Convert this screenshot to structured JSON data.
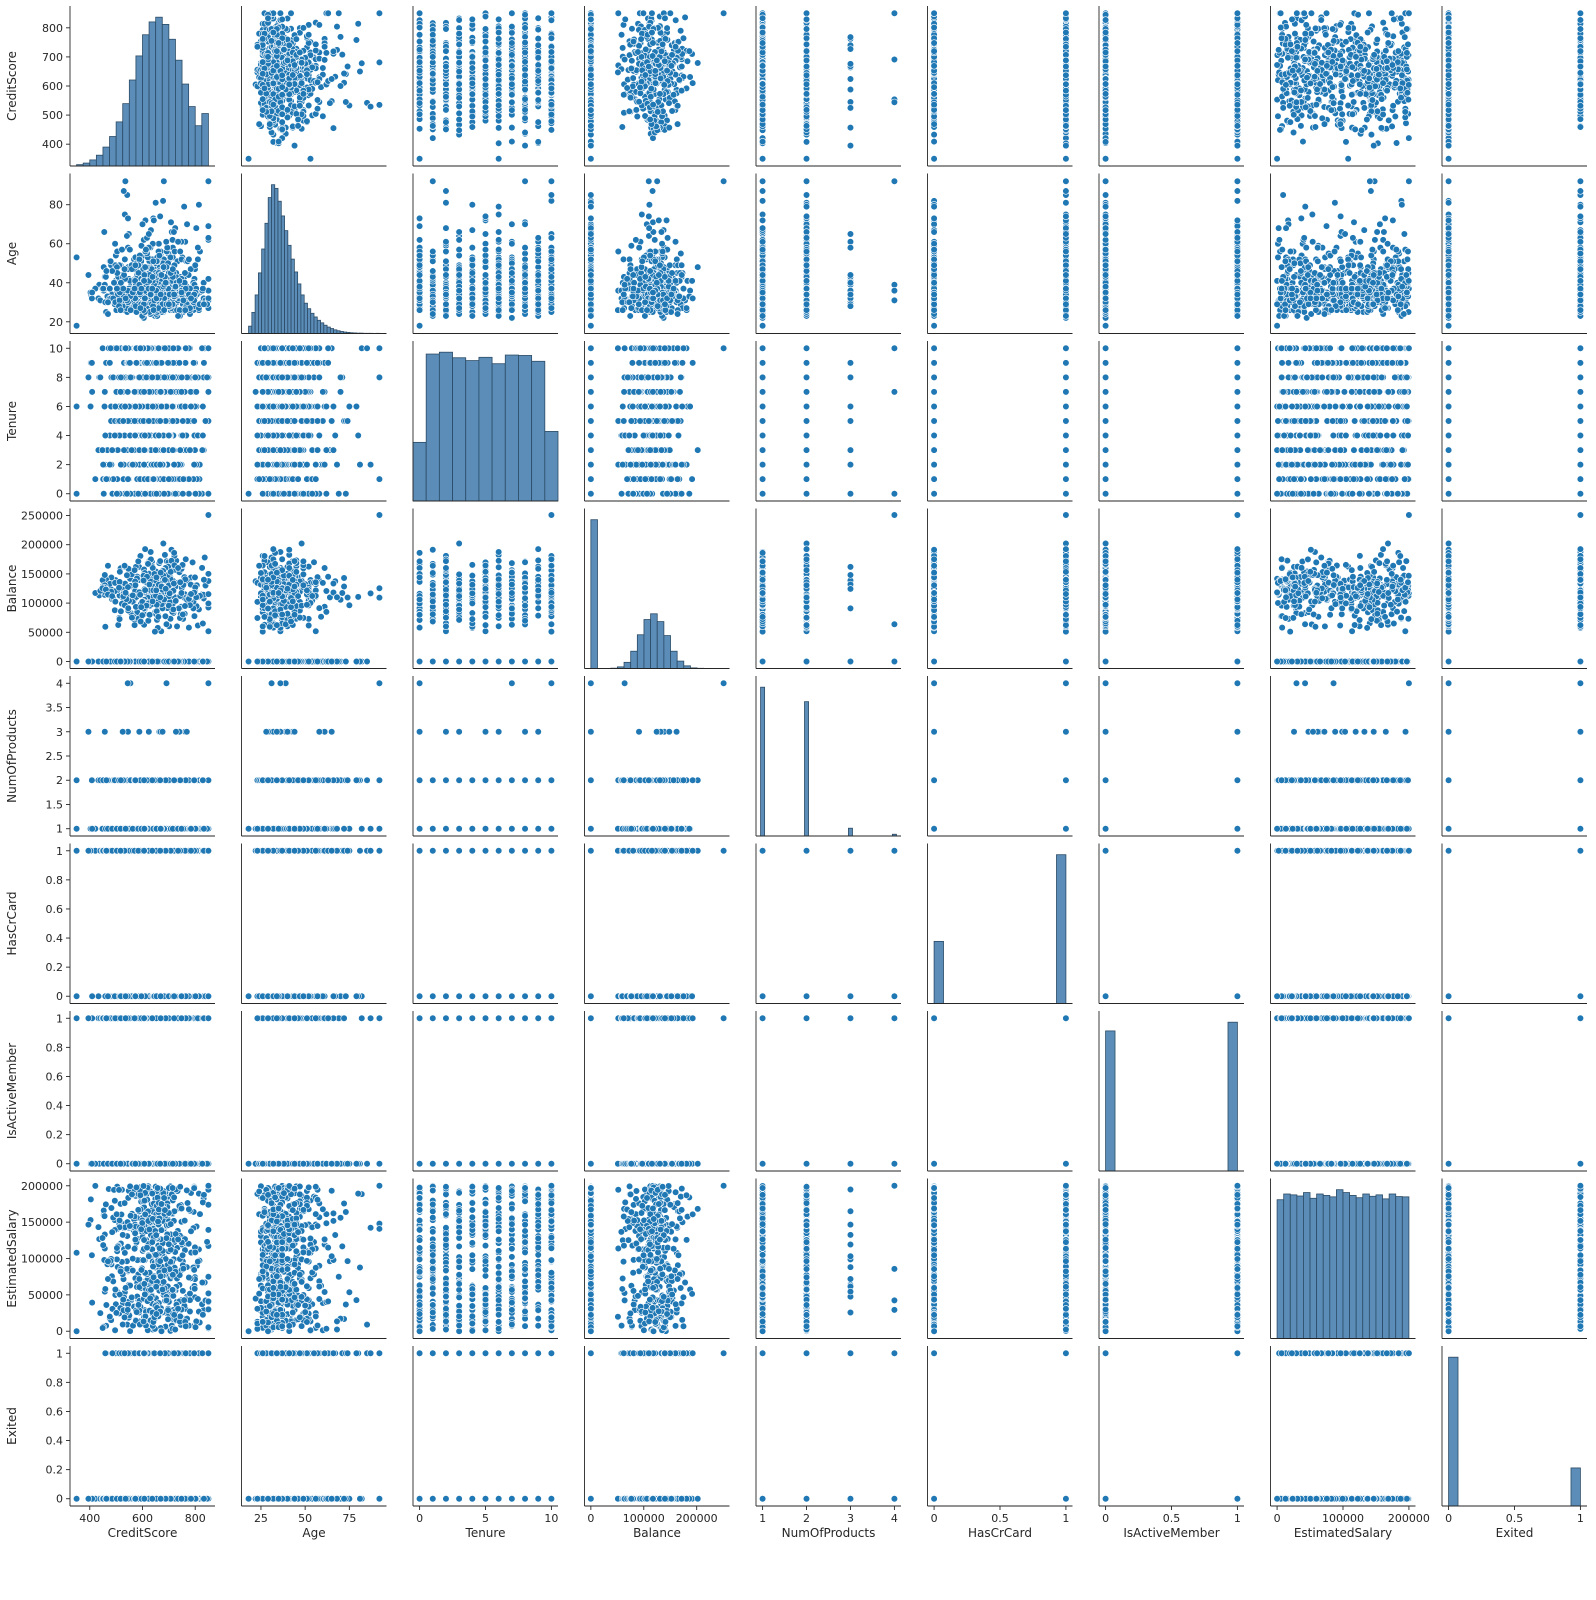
{
  "chart_data": {
    "type": "scatter",
    "subtype": "pairplot",
    "title": "",
    "legend": "none",
    "grid": false,
    "colors": {
      "marker": "#1f77b4",
      "bar_fill": "#5b8db8",
      "bar_edge": "#2b4b66",
      "axis": "#262626",
      "background": "#ffffff"
    },
    "variables": [
      {
        "name": "CreditScore",
        "min": 350,
        "max": 850,
        "lim": [
          325,
          875
        ],
        "ticks": [
          400,
          600,
          800
        ],
        "yticks": [
          400,
          500,
          600,
          700,
          800
        ],
        "kind": "continuous",
        "dist": "normal",
        "mean": 650,
        "sd": 96
      },
      {
        "name": "Age",
        "min": 18,
        "max": 92,
        "lim": [
          14,
          96
        ],
        "ticks": [
          25,
          50,
          75
        ],
        "yticks": [
          20,
          40,
          60,
          80
        ],
        "kind": "continuous",
        "dist": "skewed",
        "mean": 39,
        "sd": 10.5
      },
      {
        "name": "Tenure",
        "min": 0,
        "max": 10,
        "lim": [
          -0.5,
          10.5
        ],
        "ticks": [
          0,
          5,
          10
        ],
        "yticks": [
          0,
          2,
          4,
          6,
          8,
          10
        ],
        "kind": "discrete",
        "levels": [
          0,
          1,
          2,
          3,
          4,
          5,
          6,
          7,
          8,
          9,
          10
        ]
      },
      {
        "name": "Balance",
        "min": 0,
        "max": 250898,
        "lim": [
          -12000,
          262000
        ],
        "ticks": [
          0,
          100000,
          200000
        ],
        "yticks": [
          0,
          50000,
          100000,
          150000,
          200000,
          250000
        ],
        "kind": "continuous",
        "dist": "zero-inflated",
        "mean": 119000,
        "sd": 30000
      },
      {
        "name": "NumOfProducts",
        "min": 1,
        "max": 4,
        "lim": [
          0.85,
          4.15
        ],
        "ticks": [
          1,
          2,
          3,
          4
        ],
        "yticks": [
          1.0,
          1.5,
          2.0,
          2.5,
          3.0,
          3.5,
          4.0
        ],
        "kind": "discrete",
        "levels": [
          1,
          2,
          3,
          4
        ]
      },
      {
        "name": "HasCrCard",
        "min": 0,
        "max": 1,
        "lim": [
          -0.05,
          1.05
        ],
        "ticks": [
          0.0,
          0.5,
          1.0
        ],
        "yticks": [
          0.0,
          0.2,
          0.4,
          0.6,
          0.8,
          1.0
        ],
        "kind": "discrete",
        "levels": [
          0,
          1
        ]
      },
      {
        "name": "IsActiveMember",
        "min": 0,
        "max": 1,
        "lim": [
          -0.05,
          1.05
        ],
        "ticks": [
          0.0,
          0.5,
          1.0
        ],
        "yticks": [
          0.0,
          0.2,
          0.4,
          0.6,
          0.8,
          1.0
        ],
        "kind": "discrete",
        "levels": [
          0,
          1
        ]
      },
      {
        "name": "EstimatedSalary",
        "min": 11,
        "max": 199992,
        "lim": [
          -10000,
          210000
        ],
        "ticks": [
          0,
          100000,
          200000
        ],
        "yticks": [
          0,
          50000,
          100000,
          150000,
          200000
        ],
        "kind": "continuous",
        "dist": "uniform"
      },
      {
        "name": "Exited",
        "min": 0,
        "max": 1,
        "lim": [
          -0.05,
          1.05
        ],
        "ticks": [
          0.0,
          0.5,
          1.0
        ],
        "yticks": [
          0.0,
          0.2,
          0.4,
          0.6,
          0.8,
          1.0
        ],
        "kind": "discrete",
        "levels": [
          0,
          1
        ]
      }
    ],
    "diagonal_histograms": {
      "CreditScore": {
        "bins": 20,
        "range": [
          350,
          850
        ],
        "counts": [
          6,
          13,
          27,
          48,
          84,
          131,
          196,
          277,
          382,
          489,
          583,
          640,
          661,
          629,
          563,
          470,
          364,
          264,
          179,
          233
        ]
      },
      "Age": {
        "bins": 40,
        "range": [
          18,
          92
        ],
        "counts": [
          40,
          115,
          210,
          330,
          460,
          600,
          740,
          810,
          790,
          720,
          640,
          560,
          480,
          405,
          335,
          270,
          210,
          165,
          135,
          110,
          90,
          72,
          58,
          45,
          35,
          27,
          20,
          15,
          11,
          8,
          6,
          4,
          3,
          2,
          2,
          1,
          1,
          1,
          0,
          1
        ]
      },
      "Tenure": {
        "bins": 11,
        "range": [
          -0.5,
          10.5
        ],
        "counts": [
          413,
          1035,
          1048,
          1009,
          989,
          1012,
          967,
          1028,
          1025,
          984,
          490
        ]
      },
      "Balance": {
        "bins": 20,
        "range": [
          0,
          250898
        ],
        "counts": [
          3617,
          0,
          0,
          8,
          40,
          150,
          420,
          820,
          1190,
          1330,
          1140,
          800,
          420,
          180,
          65,
          15,
          5,
          2,
          0,
          1
        ]
      },
      "NumOfProducts": {
        "levels": [
          1,
          2,
          3,
          4
        ],
        "counts": [
          5084,
          4590,
          266,
          60
        ]
      },
      "HasCrCard": {
        "levels": [
          0,
          1
        ],
        "counts": [
          2945,
          7055
        ]
      },
      "IsActiveMember": {
        "levels": [
          0,
          1
        ],
        "counts": [
          4849,
          5151
        ]
      },
      "EstimatedSalary": {
        "bins": 20,
        "range": [
          0,
          200000
        ],
        "counts": [
          485,
          505,
          502,
          498,
          510,
          490,
          505,
          500,
          495,
          520,
          510,
          500,
          492,
          505,
          497,
          502,
          488,
          505,
          496,
          495
        ]
      },
      "Exited": {
        "levels": [
          0,
          1
        ],
        "counts": [
          7963,
          2037
        ]
      }
    }
  }
}
